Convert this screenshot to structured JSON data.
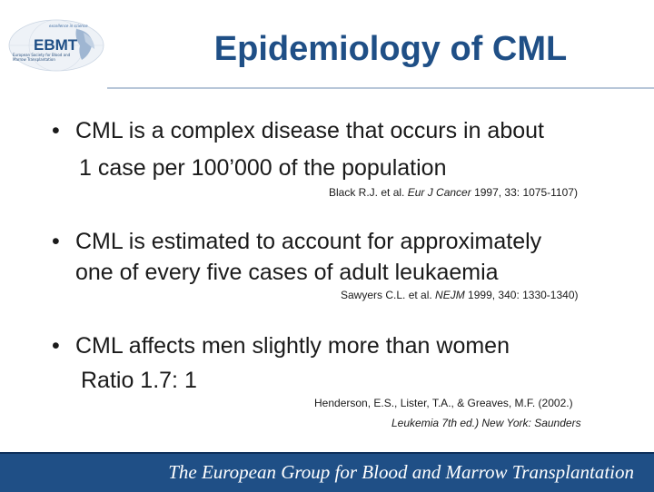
{
  "logo": {
    "tagline": "excellence in science",
    "name": "EBMT",
    "subtitle": "European Society for Blood and Marrow Transplantation"
  },
  "title": "Epidemiology of CML",
  "bullets": [
    {
      "line1": "CML is a complex disease that occurs in about",
      "line2": "1 case per 100’000 of the population",
      "citation": {
        "authors": "Black R.J. et al. ",
        "journal": "Eur J Cancer",
        "details": " 1997, 33: 1075-1107)"
      }
    },
    {
      "line1": "CML is estimated to account for approximately",
      "line2": "one of every five cases of adult leukaemia",
      "citation": {
        "authors": "Sawyers C.L. et al. ",
        "journal": "NEJM",
        "details": " 1999, 340: 1330-1340)"
      }
    },
    {
      "line1": "CML affects men slightly more than women",
      "line2": "Ratio 1.7: 1",
      "citation": {
        "line1": "Henderson, E.S., Lister, T.A., & Greaves, M.F. (2002.)",
        "line2_italic": "Leukemia 7th ed.) New York: Saunders"
      }
    }
  ],
  "footer": "The European Group for Blood and Marrow Transplantation",
  "colors": {
    "title": "#1f4f86",
    "footer_bg": "#1f4f86",
    "text": "#1a1a1a"
  }
}
